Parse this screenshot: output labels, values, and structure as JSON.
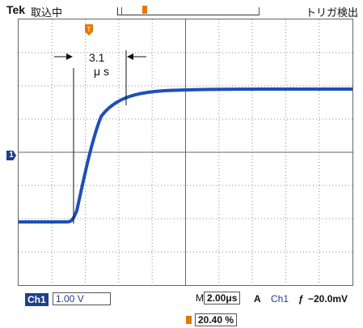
{
  "header": {
    "brand": "Tek",
    "status": "取込中",
    "trigger_state": "トリガ検出"
  },
  "annotation": {
    "time_value": "3.1",
    "time_unit": "μ s"
  },
  "footer_bar": {
    "ch1_label": "Ch1",
    "ch1_scale": "1.00 V",
    "m_label": "M",
    "timebase": "2.00μs",
    "a_label": "A",
    "trig_source": "Ch1",
    "trig_edge": "ƒ",
    "trig_level": "−20.0mV"
  },
  "footer_readout": {
    "trigger_position": "20.40 %"
  },
  "markers": {
    "ch1_marker": "1"
  },
  "colors": {
    "trace": "#1f4fb8",
    "ch1": "#1c3f8f",
    "trigger": "#e07b00",
    "grid": "#777777"
  }
}
